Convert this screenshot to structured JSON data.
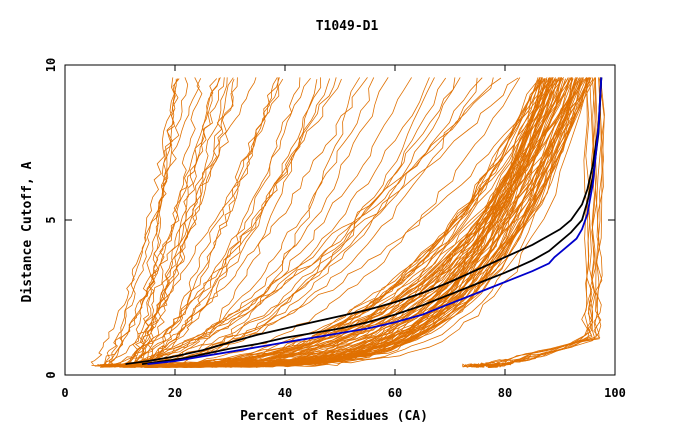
{
  "chart_data": {
    "type": "line",
    "title": "T1049-D1",
    "xlabel": "Percent of Residues (CA)",
    "ylabel": "Distance Cutoff, A",
    "xlim": [
      0,
      100
    ],
    "ylim": [
      0,
      10
    ],
    "x_ticks": [
      "0",
      "20",
      "40",
      "60",
      "80",
      "100"
    ],
    "y_ticks": [
      "0",
      "5",
      "10"
    ],
    "grid": false,
    "colors": {
      "background_series": "#e07000",
      "highlight_black": "#000000",
      "highlight_blue": "#0000cc"
    },
    "background_series_count": 140,
    "highlight_series": [
      {
        "color": "#000000",
        "points": [
          [
            11,
            0.35
          ],
          [
            15,
            0.45
          ],
          [
            20,
            0.6
          ],
          [
            25,
            0.8
          ],
          [
            30,
            1.05
          ],
          [
            35,
            1.3
          ],
          [
            40,
            1.5
          ],
          [
            45,
            1.7
          ],
          [
            50,
            1.9
          ],
          [
            55,
            2.1
          ],
          [
            60,
            2.35
          ],
          [
            65,
            2.65
          ],
          [
            70,
            3.0
          ],
          [
            75,
            3.4
          ],
          [
            80,
            3.8
          ],
          [
            85,
            4.2
          ],
          [
            88,
            4.5
          ],
          [
            90,
            4.7
          ],
          [
            92,
            5.0
          ],
          [
            94,
            5.5
          ],
          [
            95,
            6.0
          ],
          [
            96,
            6.8
          ],
          [
            97,
            8.0
          ],
          [
            97.5,
            9.6
          ]
        ]
      },
      {
        "color": "#000000",
        "points": [
          [
            14,
            0.35
          ],
          [
            18,
            0.45
          ],
          [
            22,
            0.55
          ],
          [
            26,
            0.7
          ],
          [
            30,
            0.85
          ],
          [
            35,
            1.0
          ],
          [
            40,
            1.2
          ],
          [
            45,
            1.35
          ],
          [
            50,
            1.5
          ],
          [
            55,
            1.7
          ],
          [
            60,
            1.95
          ],
          [
            65,
            2.25
          ],
          [
            70,
            2.6
          ],
          [
            75,
            2.95
          ],
          [
            80,
            3.3
          ],
          [
            85,
            3.7
          ],
          [
            88,
            4.0
          ],
          [
            90,
            4.3
          ],
          [
            92,
            4.6
          ],
          [
            94,
            5.0
          ],
          [
            95,
            5.6
          ],
          [
            96,
            6.4
          ],
          [
            97,
            7.8
          ],
          [
            97.5,
            9.6
          ]
        ]
      },
      {
        "color": "#0000cc",
        "points": [
          [
            15,
            0.35
          ],
          [
            20,
            0.45
          ],
          [
            25,
            0.6
          ],
          [
            30,
            0.75
          ],
          [
            35,
            0.9
          ],
          [
            40,
            1.05
          ],
          [
            45,
            1.2
          ],
          [
            50,
            1.35
          ],
          [
            55,
            1.5
          ],
          [
            60,
            1.7
          ],
          [
            65,
            1.95
          ],
          [
            70,
            2.3
          ],
          [
            75,
            2.65
          ],
          [
            80,
            3.0
          ],
          [
            85,
            3.35
          ],
          [
            88,
            3.6
          ],
          [
            89,
            3.8
          ],
          [
            91,
            4.1
          ],
          [
            93,
            4.4
          ],
          [
            94,
            4.7
          ],
          [
            95,
            5.2
          ],
          [
            96,
            6.2
          ],
          [
            97,
            8.0
          ],
          [
            97.5,
            9.6
          ]
        ]
      }
    ]
  }
}
